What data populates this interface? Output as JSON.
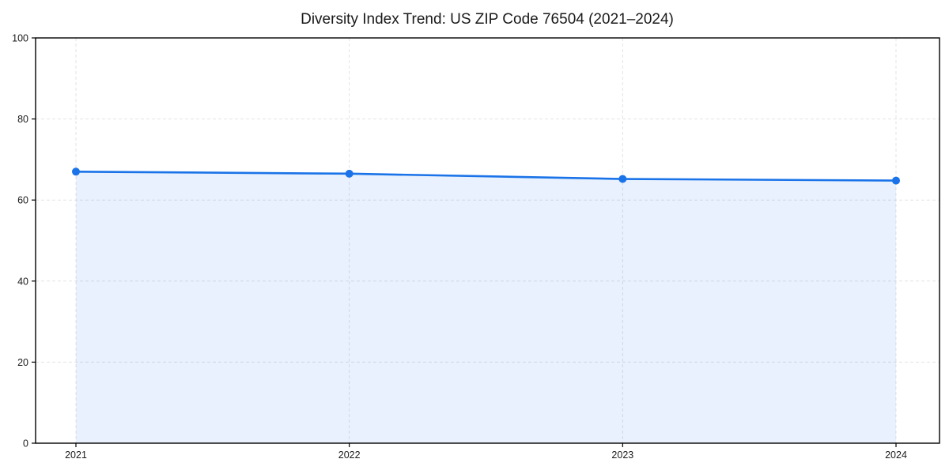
{
  "page": {
    "background": "#ffffff"
  },
  "chart_data": {
    "type": "area",
    "title": "Diversity Index Trend: US ZIP Code 76504 (2021–2024)",
    "series_name": "Diversity Index",
    "x": [
      2021,
      2022,
      2023,
      2024
    ],
    "values": [
      67.0,
      66.5,
      65.2,
      64.8
    ],
    "xticks": [
      "2021",
      "2022",
      "2023",
      "2024"
    ],
    "yticks": [
      0,
      20,
      40,
      60,
      80,
      100
    ],
    "ylim": [
      0,
      100
    ],
    "xlabel": "",
    "ylabel": "",
    "grid": true,
    "grid_style": "dashed",
    "legend": false,
    "marker": "circle",
    "colors": {
      "line": "#1a73e8",
      "fill": "#1a73e8",
      "fill_opacity": 0.1,
      "grid": "#e3e3e3",
      "axis": "#000000",
      "text": "#1a1a1a"
    }
  }
}
